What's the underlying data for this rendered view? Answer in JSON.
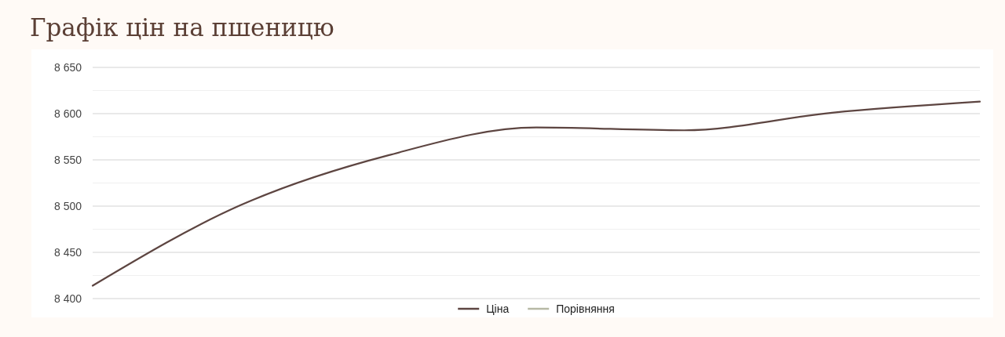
{
  "chart_data": {
    "type": "line",
    "title": "Графік цін на пшеницю",
    "categories": [
      null,
      null,
      null,
      null,
      null,
      null,
      null
    ],
    "series": [
      {
        "name": "Ціна",
        "color": "#5d4541",
        "values": [
          8414,
          8501,
          8555,
          8585,
          8582,
          8601,
          8613
        ]
      },
      {
        "name": "Порівняння",
        "color": "#b7b9a5",
        "values": [
          null,
          null,
          null,
          null,
          null,
          null,
          null
        ]
      }
    ],
    "ylim": [
      8400,
      8650
    ],
    "yticks": [
      {
        "value": 8400,
        "label": "8 400"
      },
      {
        "value": 8425,
        "label": null
      },
      {
        "value": 8450,
        "label": "8 450"
      },
      {
        "value": 8475,
        "label": null
      },
      {
        "value": 8500,
        "label": "8 500"
      },
      {
        "value": 8525,
        "label": null
      },
      {
        "value": 8550,
        "label": "8 550"
      },
      {
        "value": 8575,
        "label": null
      },
      {
        "value": 8600,
        "label": "8 600"
      },
      {
        "value": 8625,
        "label": null
      },
      {
        "value": 8650,
        "label": "8 650"
      }
    ],
    "grid": "y",
    "legend": "bottom"
  }
}
